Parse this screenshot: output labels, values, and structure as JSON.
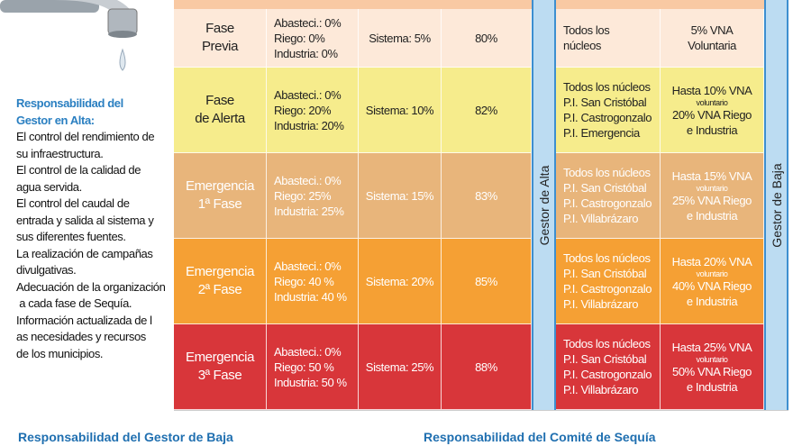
{
  "left": {
    "heading": [
      "Responsabilidad del",
      "Gestor en Alta:"
    ],
    "lines": [
      "El control del rendimiento de",
      "su infraestructura.",
      "El control de la calidad de",
      "agua servida.",
      "El control del caudal de",
      "entrada y salida al sistema y",
      "sus diferentes fuentes.",
      "La realización de campañas",
      "divulgativas.",
      "Adecuación de la organización",
      " a cada fase de Sequía.",
      "Información actualizada de l",
      "as necesidades y recursos",
      "de los municipios."
    ]
  },
  "table": {
    "alta": "Gestor de Alta",
    "baja": "Gestor de Baja",
    "rows": [
      {
        "phase": [
          "Fase",
          "Previa"
        ],
        "supply": [
          "Abasteci.: 0%",
          "Riego: 0%",
          "Industria: 0%"
        ],
        "system": "Sistema: 5%",
        "pct": "80%",
        "nuclei": [
          "Todos los",
          "núcleos"
        ],
        "vna": [
          "5% VNA",
          "Voluntaria"
        ]
      },
      {
        "phase": [
          "Fase",
          "de Alerta"
        ],
        "supply": [
          "Abasteci.: 0%",
          "Riego: 20%",
          "Industria: 20%"
        ],
        "system": "Sistema: 10%",
        "pct": "82%",
        "nuclei": [
          "Todos los núcleos",
          "P.I. San Cristóbal",
          "P.I. Castrogonzalo",
          "P.I. Emergencia"
        ],
        "vna": [
          "Hasta 10% VNA"
        ],
        "vna_note": "voluntario",
        "vna_extra": [
          "20% VNA Riego",
          "e Industria"
        ]
      },
      {
        "phase": [
          "Emergencia",
          "1ª Fase"
        ],
        "supply": [
          "Abasteci.: 0%",
          "Riego: 25%",
          "Industria: 25%"
        ],
        "system": "Sistema: 15%",
        "pct": "83%",
        "nuclei": [
          "Todos los núcleos",
          "P.I. San Cristóbal",
          "P.I. Castrogonzalo",
          "P.I. Villabrázaro"
        ],
        "vna": [
          "Hasta 15% VNA"
        ],
        "vna_note": "voluntario",
        "vna_extra": [
          "25% VNA Riego",
          "e Industria"
        ]
      },
      {
        "phase": [
          "Emergencia",
          "2ª Fase"
        ],
        "supply": [
          "Abasteci.: 0%",
          "Riego: 40 %",
          "Industria: 40 %"
        ],
        "system": "Sistema: 20%",
        "pct": "85%",
        "nuclei": [
          "Todos los núcleos",
          "P.I. San Cristóbal",
          "P.I. Castrogonzalo",
          "P.I. Villabrázaro"
        ],
        "vna": [
          "Hasta 20% VNA"
        ],
        "vna_note": "voluntario",
        "vna_extra": [
          "40% VNA Riego",
          "e Industria"
        ]
      },
      {
        "phase": [
          "Emergencia",
          "3ª Fase"
        ],
        "supply": [
          "Abasteci.: 0%",
          "Riego: 50 %",
          "Industria: 50 %"
        ],
        "system": "Sistema: 25%",
        "pct": "88%",
        "nuclei": [
          "Todos los núcleos",
          "P.I. San Cristóbal",
          "P.I. Castrogonzalo",
          "P.I. Villabrázaro"
        ],
        "vna": [
          "Hasta 25% VNA"
        ],
        "vna_note": "voluntario",
        "vna_extra": [
          "50% VNA Riego",
          "e Industria"
        ]
      }
    ]
  },
  "footer": {
    "baja": "Responsabilidad del Gestor de Baja",
    "comite": "Responsabilidad del Comité de Sequía"
  }
}
